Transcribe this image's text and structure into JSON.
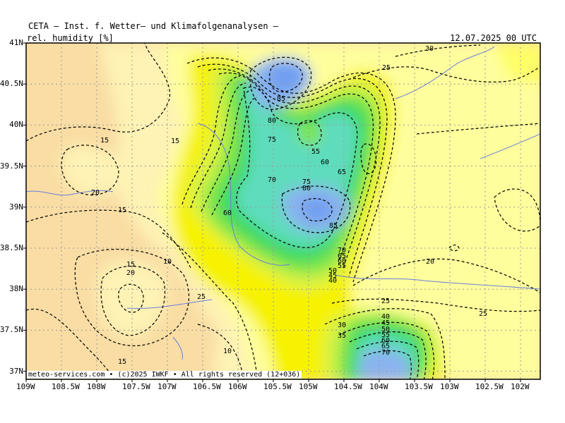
{
  "header": {
    "title": "CETA — Inst. f. Wetter— und Klimafolgenanalysen —",
    "parameter": "rel. humidity [%]",
    "valid_time": "12.07.2025 00 UTC"
  },
  "axes": {
    "lat_labels": [
      "41N",
      "40.5N",
      "40N",
      "39.5N",
      "39N",
      "38.5N",
      "38N",
      "37.5N",
      "37N"
    ],
    "lon_labels": [
      "109W",
      "108.5W",
      "108W",
      "107.5W",
      "107W",
      "106.5W",
      "106W",
      "105.5W",
      "105W",
      "104.5W",
      "104W",
      "103.5W",
      "103W",
      "102.5W",
      "102W"
    ]
  },
  "contour_labels": [
    "30",
    "25",
    "85",
    "80",
    "75",
    "55",
    "60",
    "65",
    "70",
    "75",
    "80",
    "85",
    "15",
    "15",
    "20",
    "15",
    "25",
    "60",
    "70",
    "65",
    "60",
    "55",
    "50",
    "45",
    "40",
    "20",
    "15",
    "10",
    "20",
    "15",
    "10",
    "25",
    "30",
    "35",
    "40",
    "45",
    "50",
    "55",
    "60",
    "65",
    "70",
    "25"
  ],
  "footer": {
    "copyright": "meteo-services.com • (c)2025 IWKF • All rights reserved (12+036)"
  },
  "colors": {
    "rh_10_15": "#f9dda4",
    "rh_15_20": "#fef2b4",
    "rh_20_25": "#fefe9d",
    "rh_25_30": "#fefe66",
    "rh_30_35": "#f6f200",
    "rh_40_45": "#d7f244",
    "rh_50_55": "#7fe64c",
    "rh_60_65": "#39d963",
    "rh_70_75": "#5fdcbc",
    "rh_80_85": "#8ab3ef",
    "rh_85_90": "#6f9ef2",
    "rivers": "#6a7edb",
    "grid": "#9a9a9a"
  }
}
